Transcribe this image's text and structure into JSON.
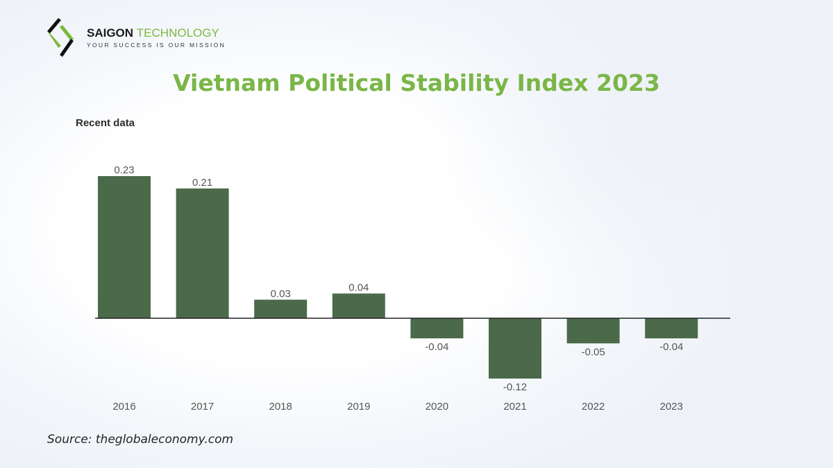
{
  "logo": {
    "brand_primary": "SAIGON",
    "brand_secondary": "TECHNOLOGY",
    "tagline": "YOUR SUCCESS IS OUR MISSION",
    "icon": "saigon-technology-logo-icon"
  },
  "colors": {
    "title": "#7ab648",
    "bar": "#4a6a4a",
    "axis": "#222222",
    "label": "#555555",
    "brand_green": "#7cb83d"
  },
  "source": "Source: theglobaleconomy.com",
  "chart_data": {
    "type": "bar",
    "title": "Vietnam Political Stability Index 2023",
    "subtitle": "Recent data",
    "xlabel": "",
    "ylabel": "",
    "categories": [
      "2016",
      "2017",
      "2018",
      "2019",
      "2020",
      "2021",
      "2022",
      "2023"
    ],
    "values": [
      0.23,
      0.21,
      0.03,
      0.04,
      -0.04,
      -0.12,
      -0.05,
      -0.04
    ],
    "data_labels": [
      "0.23",
      "0.21",
      "0.03",
      "0.04",
      "-0.04",
      "-0.12",
      "-0.05",
      "-0.04"
    ],
    "ylim": [
      -0.12,
      0.23
    ],
    "grid": false,
    "legend": "none"
  }
}
